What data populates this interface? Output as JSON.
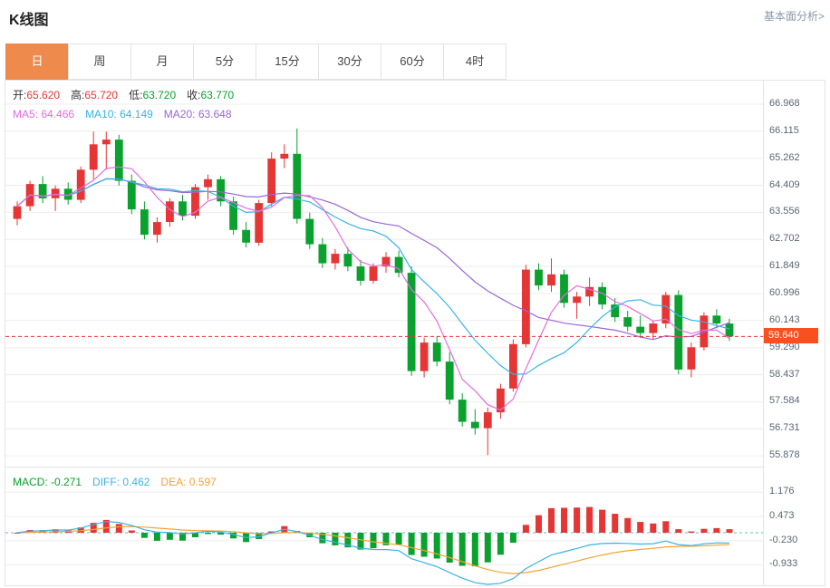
{
  "header": {
    "title": "K线图",
    "analysis_link": "基本面分析>"
  },
  "tabs": [
    {
      "label": "日",
      "active": true
    },
    {
      "label": "周",
      "active": false
    },
    {
      "label": "月",
      "active": false
    },
    {
      "label": "5分",
      "active": false
    },
    {
      "label": "15分",
      "active": false
    },
    {
      "label": "30分",
      "active": false
    },
    {
      "label": "60分",
      "active": false
    },
    {
      "label": "4时",
      "active": false
    }
  ],
  "main_info": {
    "open_label": "开:",
    "open_value": "65.620",
    "high_label": "高:",
    "high_value": "65.720",
    "low_label": "低:",
    "low_value": "63.720",
    "close_label": "收:",
    "close_value": "63.770",
    "ma5_label": "MA5:",
    "ma5_value": "64.466",
    "ma10_label": "MA10:",
    "ma10_value": "64.149",
    "ma20_label": "MA20:",
    "ma20_value": "63.648"
  },
  "macd_info": {
    "macd_label": "MACD:",
    "macd_value": "-0.271",
    "diff_label": "DIFF:",
    "diff_value": "0.462",
    "dea_label": "DEA:",
    "dea_value": "0.597"
  },
  "price_badge": "59.640",
  "colors": {
    "up": "#e53535",
    "down": "#0aa12e",
    "ma5": "#e26ce2",
    "ma10": "#39b3e6",
    "ma20": "#9a66d6",
    "diff": "#39b3e6",
    "dea": "#f5a332",
    "price_line": "#f03030",
    "badge_bg": "#fa4f1f",
    "grid": "#ededed",
    "zero_line": "#5bbfc6"
  },
  "chart_data": [
    {
      "type": "candlestick",
      "title": "K线图 日K",
      "y_ticks": [
        "66.968",
        "66.115",
        "65.262",
        "64.409",
        "63.556",
        "62.702",
        "61.849",
        "60.996",
        "60.143",
        "59.290",
        "58.437",
        "57.584",
        "56.731",
        "55.878"
      ],
      "current_price": 59.64,
      "hovered_candle": {
        "open": 65.62,
        "high": 65.72,
        "low": 63.72,
        "close": 63.77
      },
      "overlays": [
        {
          "name": "MA5",
          "last": 64.466
        },
        {
          "name": "MA10",
          "last": 64.149
        },
        {
          "name": "MA20",
          "last": 63.648
        }
      ],
      "ohlc": [
        [
          63.35,
          63.9,
          63.15,
          63.75
        ],
        [
          63.75,
          64.55,
          63.6,
          64.45
        ],
        [
          64.45,
          64.7,
          63.85,
          64.0
        ],
        [
          64.0,
          64.4,
          63.6,
          64.3
        ],
        [
          64.3,
          64.5,
          63.8,
          63.95
        ],
        [
          63.95,
          65.0,
          63.85,
          64.9
        ],
        [
          64.9,
          66.1,
          64.6,
          65.7
        ],
        [
          65.7,
          66.1,
          64.9,
          65.85
        ],
        [
          65.85,
          66.0,
          64.4,
          64.55
        ],
        [
          64.55,
          64.75,
          63.5,
          63.65
        ],
        [
          63.65,
          63.9,
          62.7,
          62.85
        ],
        [
          62.85,
          63.4,
          62.6,
          63.25
        ],
        [
          63.25,
          64.0,
          63.1,
          63.9
        ],
        [
          63.9,
          64.1,
          63.3,
          63.45
        ],
        [
          63.45,
          64.45,
          63.35,
          64.35
        ],
        [
          64.35,
          64.75,
          63.95,
          64.6
        ],
        [
          64.6,
          64.7,
          63.75,
          63.9
        ],
        [
          63.9,
          64.05,
          62.85,
          63.0
        ],
        [
          63.0,
          63.25,
          62.45,
          62.6
        ],
        [
          62.6,
          63.95,
          62.5,
          63.85
        ],
        [
          63.85,
          65.45,
          63.75,
          65.25
        ],
        [
          65.25,
          65.7,
          64.95,
          65.4
        ],
        [
          65.4,
          66.2,
          63.2,
          63.35
        ],
        [
          63.35,
          63.55,
          62.4,
          62.55
        ],
        [
          62.55,
          62.75,
          61.8,
          61.95
        ],
        [
          61.95,
          62.4,
          61.75,
          62.25
        ],
        [
          62.25,
          62.45,
          61.7,
          61.85
        ],
        [
          61.85,
          62.05,
          61.25,
          61.4
        ],
        [
          61.4,
          61.95,
          61.3,
          61.85
        ],
        [
          61.85,
          62.3,
          61.65,
          62.15
        ],
        [
          62.15,
          62.35,
          61.5,
          61.65
        ],
        [
          61.65,
          61.85,
          58.4,
          58.55
        ],
        [
          58.55,
          59.6,
          58.35,
          59.45
        ],
        [
          59.45,
          59.65,
          58.7,
          58.85
        ],
        [
          58.85,
          59.15,
          57.5,
          57.65
        ],
        [
          57.65,
          57.85,
          56.8,
          56.95
        ],
        [
          56.95,
          57.35,
          56.55,
          56.75
        ],
        [
          56.75,
          57.4,
          55.9,
          57.25
        ],
        [
          57.25,
          58.15,
          57.05,
          58.0
        ],
        [
          58.0,
          59.55,
          57.9,
          59.4
        ],
        [
          59.4,
          61.9,
          59.3,
          61.75
        ],
        [
          61.75,
          61.95,
          61.1,
          61.25
        ],
        [
          61.25,
          62.1,
          61.05,
          61.6
        ],
        [
          61.6,
          61.75,
          60.55,
          60.7
        ],
        [
          60.7,
          61.05,
          60.2,
          60.9
        ],
        [
          60.9,
          61.5,
          60.6,
          61.2
        ],
        [
          61.2,
          61.35,
          60.5,
          60.65
        ],
        [
          60.65,
          60.85,
          60.1,
          60.25
        ],
        [
          60.25,
          60.45,
          59.8,
          59.95
        ],
        [
          59.95,
          60.3,
          59.6,
          59.75
        ],
        [
          59.75,
          60.15,
          59.55,
          60.05
        ],
        [
          60.05,
          61.05,
          59.9,
          60.95
        ],
        [
          60.95,
          61.1,
          58.45,
          58.6
        ],
        [
          58.6,
          59.45,
          58.35,
          59.3
        ],
        [
          59.3,
          60.4,
          59.2,
          60.3
        ],
        [
          60.3,
          60.5,
          59.9,
          60.05
        ],
        [
          60.05,
          60.2,
          59.5,
          59.64
        ]
      ]
    },
    {
      "type": "bar",
      "title": "MACD",
      "y_ticks": [
        "1.176",
        "0.473",
        "-0.230",
        "-0.933"
      ],
      "values": {
        "macd": -0.271,
        "diff": 0.462,
        "dea": 0.597
      }
    }
  ]
}
